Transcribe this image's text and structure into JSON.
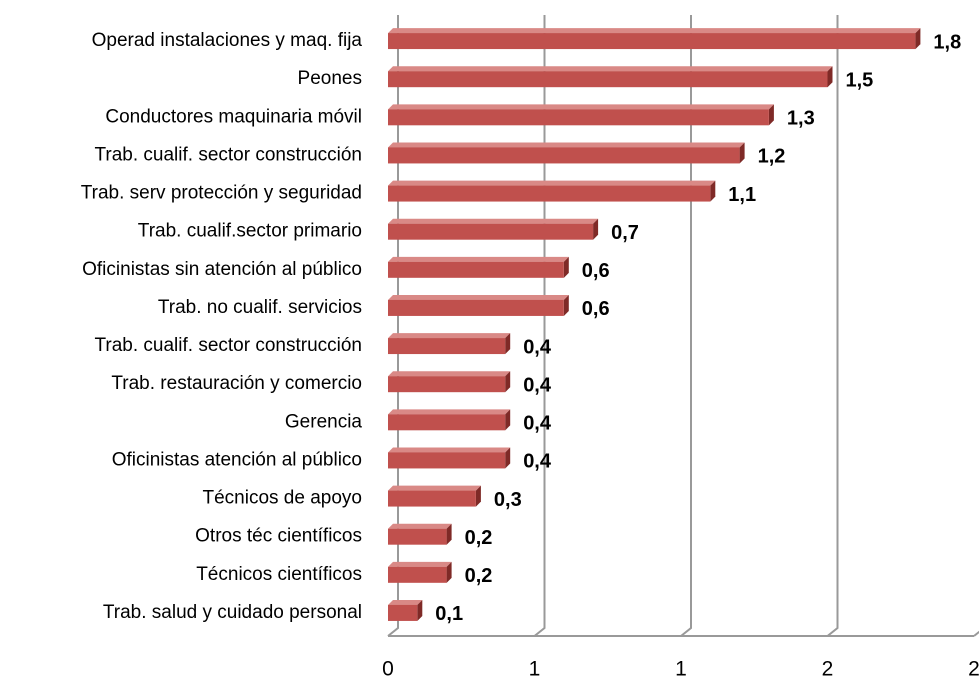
{
  "chart_data": {
    "type": "hbar",
    "categories": [
      "Operad instalaciones y maq. fija",
      "Peones",
      "Conductores maquinaria móvil",
      "Trab. cualif. sector construcción",
      "Trab. serv protección y seguridad",
      "Trab. cualif.sector primario",
      "Oficinistas sin atención al público",
      "Trab. no cualif. servicios",
      "Trab. cualif. sector construcción",
      "Trab. restauración y comercio",
      "Gerencia",
      "Oficinistas atención al público",
      "Técnicos de apoyo",
      "Otros téc científicos",
      "Técnicos científicos",
      "Trab. salud y cuidado personal"
    ],
    "values": [
      1.8,
      1.5,
      1.3,
      1.2,
      1.1,
      0.7,
      0.6,
      0.6,
      0.4,
      0.4,
      0.4,
      0.4,
      0.3,
      0.2,
      0.2,
      0.1
    ],
    "value_labels": [
      "1,8",
      "1,5",
      "1,3",
      "1,2",
      "1,1",
      "0,7",
      "0,6",
      "0,6",
      "0,4",
      "0,4",
      "0,4",
      "0,4",
      "0,3",
      "0,2",
      "0,2",
      "0,1"
    ],
    "color": "#c0504d",
    "xlim": [
      0,
      2
    ],
    "xticks": [
      0,
      {
        "value": 0.5,
        "label": "1"
      },
      1,
      {
        "value": 1.5,
        "label": "2"
      },
      2
    ],
    "grid": true
  }
}
